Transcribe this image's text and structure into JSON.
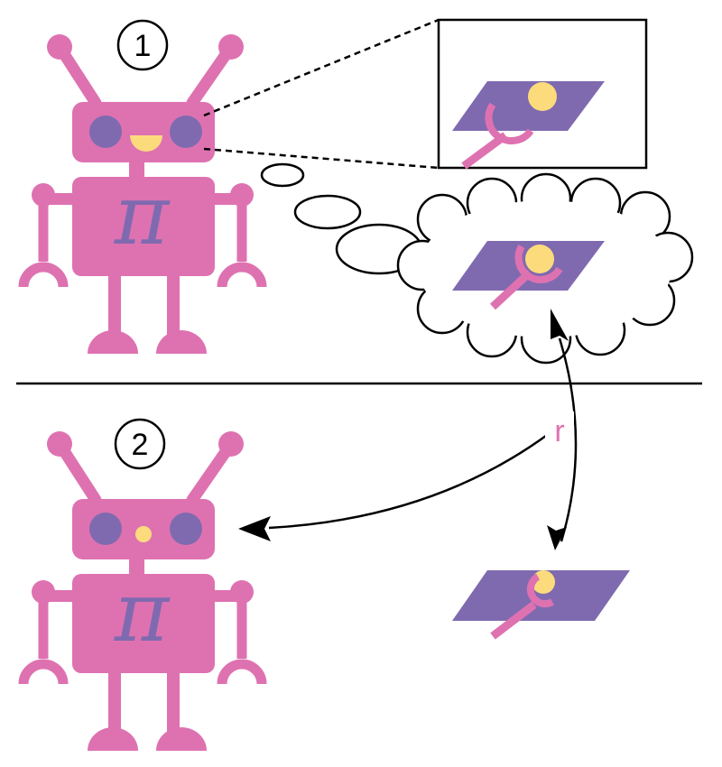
{
  "diagram": {
    "panel_1": {
      "number": "1",
      "robot_symbol": "π"
    },
    "panel_2": {
      "number": "2",
      "robot_symbol": "π"
    },
    "edge_label": "r"
  },
  "colors": {
    "robot_pink": "#de72b1",
    "eye_purple": "#7f6ab0",
    "accent_yellow": "#fcdb7d",
    "plate_purple": "#7f6ab0",
    "line_black": "#000000"
  }
}
